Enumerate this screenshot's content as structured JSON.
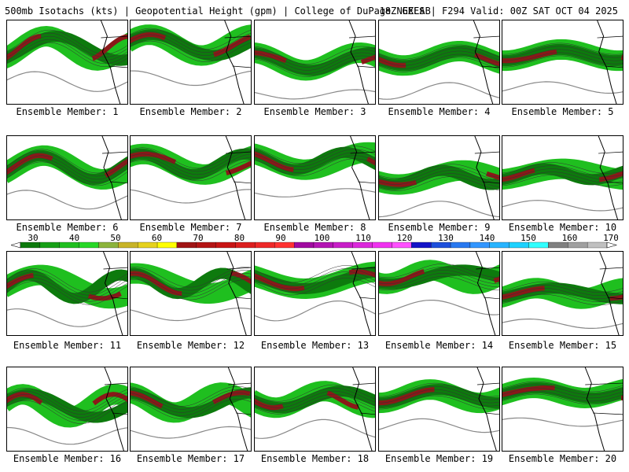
{
  "header": {
    "left_text": "500mb Isotachs (kts) | Geopotential Height (gpm) | College of DuPage NEXLAB",
    "right_text": "18Z GEFS | F294 Valid: 00Z SAT OCT 04 2025"
  },
  "members": [
    {
      "label": "Ensemble Member: 1"
    },
    {
      "label": "Ensemble Member: 2"
    },
    {
      "label": "Ensemble Member: 3"
    },
    {
      "label": "Ensemble Member: 4"
    },
    {
      "label": "Ensemble Member: 5"
    },
    {
      "label": "Ensemble Member: 6"
    },
    {
      "label": "Ensemble Member: 7"
    },
    {
      "label": "Ensemble Member: 8"
    },
    {
      "label": "Ensemble Member: 9"
    },
    {
      "label": "Ensemble Member: 10"
    },
    {
      "label": "Ensemble Member: 11"
    },
    {
      "label": "Ensemble Member: 12"
    },
    {
      "label": "Ensemble Member: 13"
    },
    {
      "label": "Ensemble Member: 14"
    },
    {
      "label": "Ensemble Member: 15"
    },
    {
      "label": "Ensemble Member: 16"
    },
    {
      "label": "Ensemble Member: 17"
    },
    {
      "label": "Ensemble Member: 18"
    },
    {
      "label": "Ensemble Member: 19"
    },
    {
      "label": "Ensemble Member: 20"
    }
  ],
  "colorbar": {
    "tick_labels": [
      "30",
      "40",
      "50",
      "60",
      "70",
      "80",
      "90",
      "100",
      "110",
      "120",
      "130",
      "140",
      "150",
      "160",
      "170"
    ],
    "colors": [
      "#0d7a0d",
      "#17a017",
      "#1fbf1f",
      "#27d827",
      "#8cb43c",
      "#c8b428",
      "#e6d21e",
      "#ffff00",
      "#a01414",
      "#b41414",
      "#c81414",
      "#dc1e1e",
      "#ee2828",
      "#ff3232",
      "#a00aa0",
      "#b414b4",
      "#c81ec8",
      "#dc28dc",
      "#f032f0",
      "#ff50ff",
      "#1414c8",
      "#1e50dc",
      "#2878f0",
      "#3296ff",
      "#28b4ff",
      "#1ed2ff",
      "#32ffff",
      "#808080",
      "#a0a0a0",
      "#c0c0c0"
    ]
  }
}
